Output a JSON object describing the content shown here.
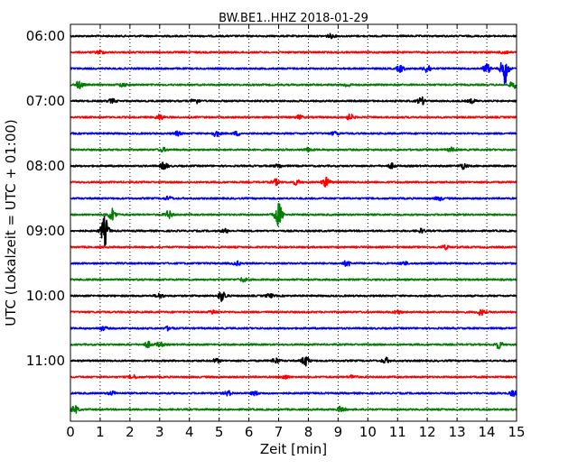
{
  "chart_data": {
    "type": "line",
    "title": "BW.BE1..HHZ 2018-01-29",
    "xlabel": "Zeit  [min]",
    "ylabel": "UTC (Lokalzeit = UTC + 01:00)",
    "xlim": [
      0,
      15
    ],
    "x_ticks": [
      "0",
      "1",
      "2",
      "3",
      "4",
      "5",
      "6",
      "7",
      "8",
      "9",
      "10",
      "11",
      "12",
      "13",
      "14",
      "15"
    ],
    "y_ticks": [
      {
        "row": 0,
        "label": "06:00"
      },
      {
        "row": 4,
        "label": "07:00"
      },
      {
        "row": 8,
        "label": "08:00"
      },
      {
        "row": 12,
        "label": "09:00"
      },
      {
        "row": 16,
        "label": "10:00"
      },
      {
        "row": 20,
        "label": "11:00"
      }
    ],
    "grid": "vertical-dotted",
    "colors": [
      "#000000",
      "#ff0000",
      "#0000ff",
      "#008000"
    ],
    "series": [
      {
        "start": "06:00",
        "events": [
          {
            "t": 8.75,
            "a": 0.2
          }
        ]
      },
      {
        "start": "06:15",
        "events": [
          {
            "t": 1.0,
            "a": 0.2
          },
          {
            "t": 14.6,
            "a": 0.2
          }
        ]
      },
      {
        "start": "06:30",
        "events": [
          {
            "t": 11.1,
            "a": 0.35
          },
          {
            "t": 12.0,
            "a": 0.45
          },
          {
            "t": 14.0,
            "a": 0.5
          },
          {
            "t": 14.6,
            "a": 1.7
          }
        ]
      },
      {
        "start": "06:45",
        "events": [
          {
            "t": 0.3,
            "a": 0.4
          },
          {
            "t": 1.75,
            "a": 0.2
          },
          {
            "t": 9.3,
            "a": 0.2
          },
          {
            "t": 14.9,
            "a": 0.4
          }
        ]
      },
      {
        "start": "07:00",
        "events": [
          {
            "t": 1.4,
            "a": 0.2
          },
          {
            "t": 4.2,
            "a": 0.3
          },
          {
            "t": 11.8,
            "a": 0.4
          },
          {
            "t": 13.5,
            "a": 0.2
          }
        ]
      },
      {
        "start": "07:15",
        "events": [
          {
            "t": 3.0,
            "a": 0.3
          },
          {
            "t": 7.7,
            "a": 0.2
          },
          {
            "t": 9.4,
            "a": 0.3
          }
        ]
      },
      {
        "start": "07:30",
        "events": [
          {
            "t": 3.6,
            "a": 0.2
          },
          {
            "t": 4.9,
            "a": 0.3
          },
          {
            "t": 5.6,
            "a": 0.2
          },
          {
            "t": 8.9,
            "a": 0.2
          }
        ]
      },
      {
        "start": "07:45",
        "events": [
          {
            "t": 3.1,
            "a": 0.2
          },
          {
            "t": 8.0,
            "a": 0.2
          },
          {
            "t": 12.8,
            "a": 0.2
          }
        ]
      },
      {
        "start": "08:00",
        "events": [
          {
            "t": 3.15,
            "a": 0.4
          },
          {
            "t": 7.0,
            "a": 0.2
          },
          {
            "t": 10.8,
            "a": 0.25
          },
          {
            "t": 13.2,
            "a": 0.3
          }
        ]
      },
      {
        "start": "08:15",
        "events": [
          {
            "t": 6.9,
            "a": 0.3
          },
          {
            "t": 7.6,
            "a": 0.25
          },
          {
            "t": 8.6,
            "a": 0.5
          }
        ]
      },
      {
        "start": "08:30",
        "events": [
          {
            "t": 3.3,
            "a": 0.2
          },
          {
            "t": 12.4,
            "a": 0.2
          }
        ]
      },
      {
        "start": "08:45",
        "events": [
          {
            "t": 1.4,
            "a": 0.7
          },
          {
            "t": 3.3,
            "a": 0.4
          },
          {
            "t": 7.0,
            "a": 1.3
          }
        ]
      },
      {
        "start": "09:00",
        "events": [
          {
            "t": 1.15,
            "a": 1.6
          },
          {
            "t": 5.2,
            "a": 0.2
          },
          {
            "t": 11.8,
            "a": 0.2
          }
        ]
      },
      {
        "start": "09:15",
        "events": [
          {
            "t": 12.6,
            "a": 0.2
          }
        ]
      },
      {
        "start": "09:30",
        "events": [
          {
            "t": 5.6,
            "a": 0.2
          },
          {
            "t": 9.3,
            "a": 0.3
          },
          {
            "t": 11.2,
            "a": 0.2
          }
        ]
      },
      {
        "start": "09:45",
        "events": [
          {
            "t": 5.8,
            "a": 0.2
          }
        ]
      },
      {
        "start": "10:00",
        "events": [
          {
            "t": 3.0,
            "a": 0.25
          },
          {
            "t": 5.1,
            "a": 0.6
          },
          {
            "t": 6.7,
            "a": 0.2
          }
        ]
      },
      {
        "start": "10:15",
        "events": [
          {
            "t": 4.8,
            "a": 0.2
          },
          {
            "t": 11.0,
            "a": 0.2
          },
          {
            "t": 13.8,
            "a": 0.3
          }
        ]
      },
      {
        "start": "10:30",
        "events": [
          {
            "t": 1.1,
            "a": 0.2
          },
          {
            "t": 3.3,
            "a": 0.2
          }
        ]
      },
      {
        "start": "10:45",
        "events": [
          {
            "t": 2.6,
            "a": 0.3
          },
          {
            "t": 3.0,
            "a": 0.25
          },
          {
            "t": 14.4,
            "a": 0.4
          }
        ]
      },
      {
        "start": "11:00",
        "events": [
          {
            "t": 4.9,
            "a": 0.2
          },
          {
            "t": 6.9,
            "a": 0.3
          },
          {
            "t": 7.9,
            "a": 0.55
          },
          {
            "t": 10.6,
            "a": 0.3
          }
        ]
      },
      {
        "start": "11:15",
        "events": [
          {
            "t": 2.1,
            "a": 0.2
          },
          {
            "t": 7.2,
            "a": 0.2
          },
          {
            "t": 9.5,
            "a": 0.2
          }
        ]
      },
      {
        "start": "11:30",
        "events": [
          {
            "t": 1.4,
            "a": 0.2
          },
          {
            "t": 5.3,
            "a": 0.25
          },
          {
            "t": 6.2,
            "a": 0.2
          },
          {
            "t": 14.9,
            "a": 0.3
          }
        ]
      },
      {
        "start": "11:45",
        "events": [
          {
            "t": 0.15,
            "a": 0.4
          },
          {
            "t": 9.1,
            "a": 0.3
          }
        ]
      }
    ]
  }
}
